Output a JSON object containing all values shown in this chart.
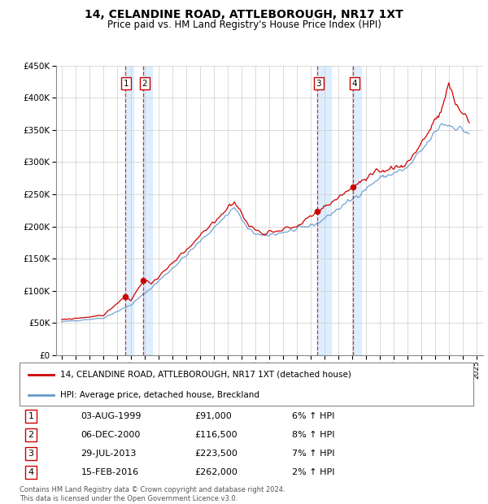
{
  "title": "14, CELANDINE ROAD, ATTLEBOROUGH, NR17 1XT",
  "subtitle": "Price paid vs. HM Land Registry's House Price Index (HPI)",
  "legend_line1": "14, CELANDINE ROAD, ATTLEBOROUGH, NR17 1XT (detached house)",
  "legend_line2": "HPI: Average price, detached house, Breckland",
  "footer1": "Contains HM Land Registry data © Crown copyright and database right 2024.",
  "footer2": "This data is licensed under the Open Government Licence v3.0.",
  "transactions": [
    {
      "num": 1,
      "date": "03-AUG-1999",
      "price": 91000,
      "pct": "6%",
      "dir": "↑"
    },
    {
      "num": 2,
      "date": "06-DEC-2000",
      "price": 116500,
      "pct": "8%",
      "dir": "↑"
    },
    {
      "num": 3,
      "date": "29-JUL-2013",
      "price": 223500,
      "pct": "7%",
      "dir": "↑"
    },
    {
      "num": 4,
      "date": "15-FEB-2016",
      "price": 262000,
      "pct": "2%",
      "dir": "↑"
    }
  ],
  "price_color": "#cc0000",
  "hpi_color": "#6699cc",
  "highlight_color": "#ddeeff",
  "vline_color": "#cc0000",
  "ylim": [
    0,
    450000
  ],
  "yticks": [
    0,
    50000,
    100000,
    150000,
    200000,
    250000,
    300000,
    350000,
    400000,
    450000
  ],
  "start_year": 1995,
  "end_year": 2025,
  "hpi_key_points": [
    [
      1995.0,
      52000
    ],
    [
      1998.0,
      58000
    ],
    [
      2000.0,
      78000
    ],
    [
      2001.5,
      105000
    ],
    [
      2004.0,
      155000
    ],
    [
      2007.5,
      230000
    ],
    [
      2008.5,
      195000
    ],
    [
      2009.5,
      185000
    ],
    [
      2012.0,
      195000
    ],
    [
      2013.5,
      205000
    ],
    [
      2016.0,
      242000
    ],
    [
      2018.0,
      275000
    ],
    [
      2020.0,
      290000
    ],
    [
      2021.5,
      330000
    ],
    [
      2022.5,
      360000
    ],
    [
      2023.5,
      355000
    ],
    [
      2024.5,
      345000
    ]
  ],
  "price_key_points": [
    [
      1995.0,
      55000
    ],
    [
      1998.0,
      62000
    ],
    [
      1999.58,
      91000
    ],
    [
      2000.0,
      85000
    ],
    [
      2000.92,
      116500
    ],
    [
      2001.5,
      112000
    ],
    [
      2004.0,
      162000
    ],
    [
      2007.5,
      240000
    ],
    [
      2008.5,
      202000
    ],
    [
      2009.5,
      190000
    ],
    [
      2012.0,
      200000
    ],
    [
      2013.58,
      223500
    ],
    [
      2016.12,
      262000
    ],
    [
      2018.0,
      285000
    ],
    [
      2020.0,
      298000
    ],
    [
      2021.5,
      345000
    ],
    [
      2022.5,
      380000
    ],
    [
      2023.0,
      420000
    ],
    [
      2023.5,
      390000
    ],
    [
      2024.5,
      365000
    ]
  ]
}
